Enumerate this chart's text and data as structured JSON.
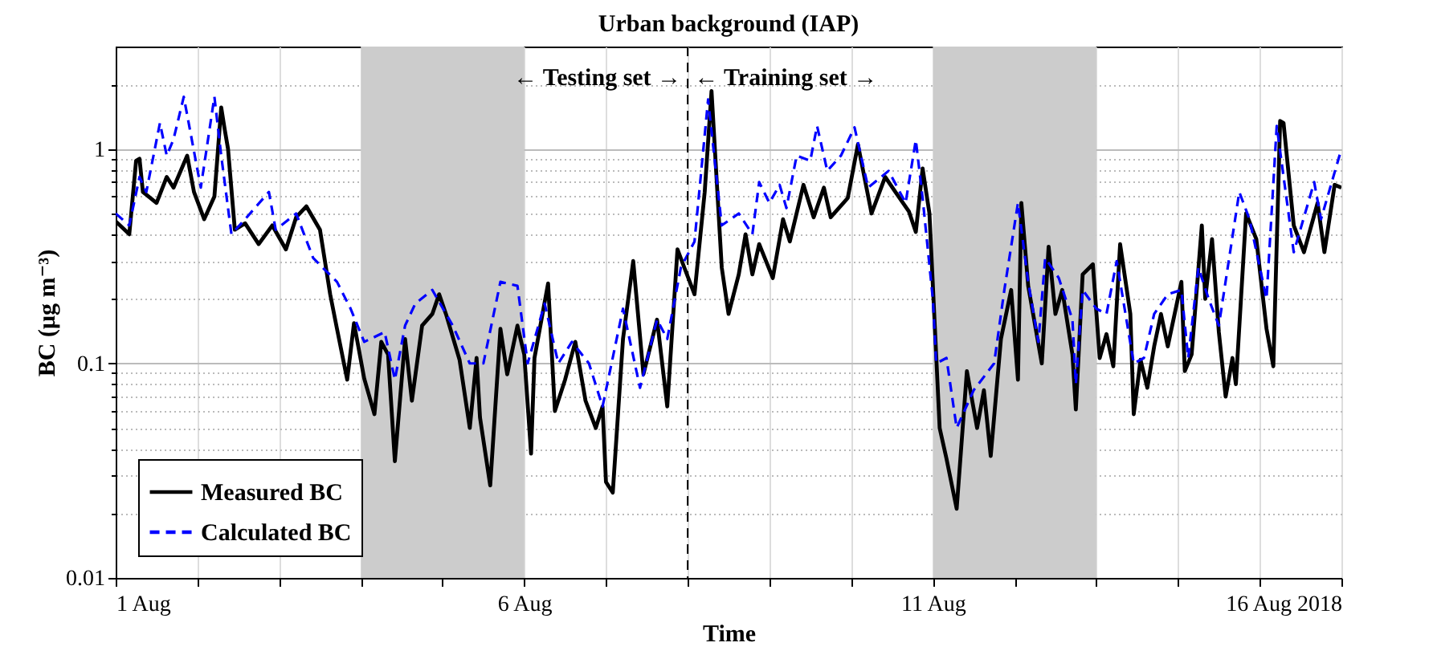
{
  "chart_data": {
    "type": "line",
    "title": "Urban background (IAP)",
    "xlabel": "Time",
    "ylabel": "BC (μg m⁻³)",
    "xlim": [
      "2018-08-01",
      "2018-08-16"
    ],
    "xticks": [
      {
        "value": "2018-08-01",
        "label": "1 Aug"
      },
      {
        "value": "2018-08-02",
        "label": null
      },
      {
        "value": "2018-08-03",
        "label": null
      },
      {
        "value": "2018-08-04",
        "label": null
      },
      {
        "value": "2018-08-05",
        "label": null
      },
      {
        "value": "2018-08-06",
        "label": "6 Aug"
      },
      {
        "value": "2018-08-07",
        "label": null
      },
      {
        "value": "2018-08-08",
        "label": null
      },
      {
        "value": "2018-08-09",
        "label": null
      },
      {
        "value": "2018-08-10",
        "label": null
      },
      {
        "value": "2018-08-11",
        "label": "11 Aug"
      },
      {
        "value": "2018-08-12",
        "label": null
      },
      {
        "value": "2018-08-13",
        "label": null
      },
      {
        "value": "2018-08-14",
        "label": null
      },
      {
        "value": "2018-08-15",
        "label": null
      },
      {
        "value": "2018-08-16",
        "label": "16 Aug 2018"
      }
    ],
    "ylim": [
      0.01,
      3
    ],
    "log": "y",
    "yticks": [
      0.01,
      {
        "value": 0.02,
        "label": null
      },
      {
        "value": 0.03,
        "label": null
      },
      {
        "value": 0.04,
        "label": null
      },
      {
        "value": 0.05,
        "label": null
      },
      {
        "value": 0.06,
        "label": null
      },
      {
        "value": 0.07,
        "label": null
      },
      {
        "value": 0.08,
        "label": null
      },
      {
        "value": 0.09,
        "label": null
      },
      0.1,
      {
        "value": 0.2,
        "label": null
      },
      {
        "value": 0.3,
        "label": null
      },
      {
        "value": 0.4,
        "label": null
      },
      {
        "value": 0.5,
        "label": null
      },
      {
        "value": 0.6,
        "label": null
      },
      {
        "value": 0.7,
        "label": null
      },
      {
        "value": 0.8,
        "label": null
      },
      {
        "value": 0.9,
        "label": null
      },
      1,
      {
        "value": 2,
        "label": null
      }
    ],
    "grid": true,
    "legend": "bottom left",
    "bands": [
      {
        "axis": "x",
        "from": "2018-08-04",
        "to": "2018-08-06",
        "color": "#cccccc"
      },
      {
        "axis": "x",
        "from": "2018-08-11",
        "to": "2018-08-13",
        "color": "#cccccc"
      }
    ],
    "ref_lines": [
      {
        "axis": "x",
        "value": "2018-08-08",
        "color": "#000000",
        "line_style": "dashed"
      }
    ],
    "annotations": [
      "← Testing set →",
      "← Training set →"
    ],
    "series": [
      {
        "name": "Measured BC",
        "color": "#000000",
        "line_style": "solid",
        "x": [
          "2018-08-01T00:00",
          "2018-08-01T04:00",
          "2018-08-01T06:00",
          "2018-08-01T07:00",
          "2018-08-01T08:00",
          "2018-08-01T12:00",
          "2018-08-01T15:00",
          "2018-08-01T17:00",
          "2018-08-01T21:00",
          "2018-08-01T23:00",
          "2018-08-02T02:00",
          "2018-08-02T05:00",
          "2018-08-02T07:00",
          "2018-08-02T08:00",
          "2018-08-02T09:00",
          "2018-08-02T11:00",
          "2018-08-02T14:00",
          "2018-08-02T18:00",
          "2018-08-02T22:00",
          "2018-08-03T02:00",
          "2018-08-03T05:00",
          "2018-08-03T08:00",
          "2018-08-03T12:00",
          "2018-08-03T15:00",
          "2018-08-03T17:00",
          "2018-08-03T20:00",
          "2018-08-03T22:00",
          "2018-08-04T01:00",
          "2018-08-04T04:00",
          "2018-08-04T06:00",
          "2018-08-04T08:00",
          "2018-08-04T10:00",
          "2018-08-04T13:00",
          "2018-08-04T15:00",
          "2018-08-04T18:00",
          "2018-08-04T21:00",
          "2018-08-04T23:00",
          "2018-08-05T01:00",
          "2018-08-05T05:00",
          "2018-08-05T08:00",
          "2018-08-05T10:00",
          "2018-08-05T11:00",
          "2018-08-05T14:00",
          "2018-08-05T17:00",
          "2018-08-05T19:00",
          "2018-08-05T22:00",
          "2018-08-06T00:00",
          "2018-08-06T02:00",
          "2018-08-06T03:00",
          "2018-08-06T07:00",
          "2018-08-06T09:00",
          "2018-08-06T12:00",
          "2018-08-06T15:00",
          "2018-08-06T18:00",
          "2018-08-06T21:00",
          "2018-08-06T23:00",
          "2018-08-07T00:00",
          "2018-08-07T02:00",
          "2018-08-07T05:00",
          "2018-08-07T08:00",
          "2018-08-07T11:00",
          "2018-08-07T15:00",
          "2018-08-07T18:00",
          "2018-08-07T21:00",
          "2018-08-07T23:00",
          "2018-08-08T02:00",
          "2018-08-08T05:00",
          "2018-08-08T07:00",
          "2018-08-08T10:00",
          "2018-08-08T12:00",
          "2018-08-08T15:00",
          "2018-08-08T17:00",
          "2018-08-08T19:00",
          "2018-08-08T21:00",
          "2018-08-09T01:00",
          "2018-08-09T04:00",
          "2018-08-09T06:00",
          "2018-08-09T10:00",
          "2018-08-09T13:00",
          "2018-08-09T16:00",
          "2018-08-09T18:00",
          "2018-08-09T23:00",
          "2018-08-10T02:00",
          "2018-08-10T06:00",
          "2018-08-10T10:00",
          "2018-08-10T13:00",
          "2018-08-10T17:00",
          "2018-08-10T19:00",
          "2018-08-10T21:00",
          "2018-08-10T23:00",
          "2018-08-11T02:00",
          "2018-08-11T04:00",
          "2018-08-11T07:00",
          "2018-08-11T10:00",
          "2018-08-11T13:00",
          "2018-08-11T15:00",
          "2018-08-11T17:00",
          "2018-08-11T20:00",
          "2018-08-11T23:00",
          "2018-08-12T01:00",
          "2018-08-12T02:00",
          "2018-08-12T04:00",
          "2018-08-12T08:00",
          "2018-08-12T10:00",
          "2018-08-12T12:00",
          "2018-08-12T14:00",
          "2018-08-12T17:00",
          "2018-08-12T18:00",
          "2018-08-12T20:00",
          "2018-08-12T23:00",
          "2018-08-13T01:00",
          "2018-08-13T03:00",
          "2018-08-13T05:00",
          "2018-08-13T07:00",
          "2018-08-13T10:00",
          "2018-08-13T11:00",
          "2018-08-13T13:00",
          "2018-08-13T15:00",
          "2018-08-13T17:00",
          "2018-08-13T19:00",
          "2018-08-13T21:00",
          "2018-08-14T01:00",
          "2018-08-14T02:00",
          "2018-08-14T04:00",
          "2018-08-14T07:00",
          "2018-08-14T08:00",
          "2018-08-14T10:00",
          "2018-08-14T12:00",
          "2018-08-14T14:00",
          "2018-08-14T16:00",
          "2018-08-14T17:00",
          "2018-08-14T20:00",
          "2018-08-14T23:00",
          "2018-08-15T02:00",
          "2018-08-15T04:00",
          "2018-08-15T06:00",
          "2018-08-15T07:00",
          "2018-08-15T10:00",
          "2018-08-15T13:00",
          "2018-08-15T17:00",
          "2018-08-15T19:00",
          "2018-08-15T22:00",
          "2018-08-16T00:00"
        ],
        "values": [
          0.46,
          0.4,
          0.88,
          0.9,
          0.63,
          0.56,
          0.74,
          0.66,
          0.93,
          0.63,
          0.47,
          0.6,
          1.56,
          1.24,
          1.0,
          0.42,
          0.45,
          0.36,
          0.44,
          0.34,
          0.48,
          0.54,
          0.42,
          0.21,
          0.145,
          0.084,
          0.154,
          0.085,
          0.058,
          0.126,
          0.11,
          0.035,
          0.13,
          0.067,
          0.15,
          0.17,
          0.21,
          0.17,
          0.104,
          0.05,
          0.106,
          0.056,
          0.027,
          0.145,
          0.089,
          0.15,
          0.11,
          0.038,
          0.106,
          0.236,
          0.06,
          0.084,
          0.126,
          0.067,
          0.05,
          0.063,
          0.028,
          0.025,
          0.13,
          0.3,
          0.089,
          0.16,
          0.063,
          0.34,
          0.28,
          0.21,
          0.63,
          1.86,
          0.28,
          0.17,
          0.26,
          0.4,
          0.26,
          0.36,
          0.25,
          0.47,
          0.37,
          0.68,
          0.48,
          0.66,
          0.48,
          0.59,
          1.05,
          0.5,
          0.74,
          0.63,
          0.51,
          0.41,
          0.81,
          0.5,
          0.05,
          0.036,
          0.021,
          0.092,
          0.05,
          0.075,
          0.037,
          0.13,
          0.22,
          0.084,
          0.56,
          0.23,
          0.1,
          0.35,
          0.17,
          0.22,
          0.11,
          0.061,
          0.26,
          0.29,
          0.106,
          0.137,
          0.097,
          0.36,
          0.17,
          0.058,
          0.104,
          0.077,
          0.12,
          0.17,
          0.12,
          0.24,
          0.092,
          0.11,
          0.44,
          0.2,
          0.38,
          0.14,
          0.07,
          0.106,
          0.08,
          0.5,
          0.38,
          0.145,
          0.097,
          1.35,
          1.32,
          0.44,
          0.33,
          0.56,
          0.33,
          0.68,
          0.66
        ]
      },
      {
        "name": "Calculated BC",
        "color": "#0000ff",
        "line_style": "dashed",
        "x": [
          "2018-08-01T00:00",
          "2018-08-01T04:00",
          "2018-08-01T07:00",
          "2018-08-01T09:00",
          "2018-08-01T13:00",
          "2018-08-01T15:00",
          "2018-08-01T17:00",
          "2018-08-01T20:00",
          "2018-08-02T01:00",
          "2018-08-02T05:00",
          "2018-08-02T07:00",
          "2018-08-02T10:00",
          "2018-08-02T14:00",
          "2018-08-02T21:00",
          "2018-08-02T23:00",
          "2018-08-03T05:00",
          "2018-08-03T10:00",
          "2018-08-03T17:00",
          "2018-08-03T21:00",
          "2018-08-04T01:00",
          "2018-08-04T07:00",
          "2018-08-04T10:00",
          "2018-08-04T13:00",
          "2018-08-04T16:00",
          "2018-08-04T21:00",
          "2018-08-05T03:00",
          "2018-08-05T08:00",
          "2018-08-05T12:00",
          "2018-08-05T17:00",
          "2018-08-05T22:00",
          "2018-08-06T01:00",
          "2018-08-06T06:00",
          "2018-08-06T10:00",
          "2018-08-06T14:00",
          "2018-08-06T19:00",
          "2018-08-06T23:00",
          "2018-08-07T05:00",
          "2018-08-07T10:00",
          "2018-08-07T15:00",
          "2018-08-07T18:00",
          "2018-08-07T22:00",
          "2018-08-08T02:00",
          "2018-08-08T06:00",
          "2018-08-08T10:00",
          "2018-08-08T15:00",
          "2018-08-08T19:00",
          "2018-08-08T21:00",
          "2018-08-09T00:00",
          "2018-08-09T03:00",
          "2018-08-09T05:00",
          "2018-08-09T08:00",
          "2018-08-09T12:00",
          "2018-08-09T14:00",
          "2018-08-09T17:00",
          "2018-08-09T21:00",
          "2018-08-10T01:00",
          "2018-08-10T05:00",
          "2018-08-10T11:00",
          "2018-08-10T16:00",
          "2018-08-10T19:00",
          "2018-08-10T21:00",
          "2018-08-11T00:00",
          "2018-08-11T01:00",
          "2018-08-11T04:00",
          "2018-08-11T07:00",
          "2018-08-11T12:00",
          "2018-08-11T18:00",
          "2018-08-11T21:00",
          "2018-08-12T01:00",
          "2018-08-12T04:00",
          "2018-08-12T07:00",
          "2018-08-12T09:00",
          "2018-08-12T13:00",
          "2018-08-12T17:00",
          "2018-08-12T18:00",
          "2018-08-12T20:00",
          "2018-08-13T00:00",
          "2018-08-13T03:00",
          "2018-08-13T06:00",
          "2018-08-13T11:00",
          "2018-08-13T14:00",
          "2018-08-13T17:00",
          "2018-08-13T21:00",
          "2018-08-14T01:00",
          "2018-08-14T03:00",
          "2018-08-14T06:00",
          "2018-08-14T09:00",
          "2018-08-14T12:00",
          "2018-08-14T18:00",
          "2018-08-14T21:00",
          "2018-08-15T02:00",
          "2018-08-15T05:00",
          "2018-08-15T10:00",
          "2018-08-15T16:00",
          "2018-08-15T18:00",
          "2018-08-16T00:00"
        ],
        "values": [
          0.5,
          0.44,
          0.74,
          0.63,
          1.32,
          0.93,
          1.11,
          1.75,
          0.66,
          1.75,
          0.93,
          0.4,
          0.47,
          0.63,
          0.42,
          0.5,
          0.31,
          0.24,
          0.18,
          0.126,
          0.14,
          0.084,
          0.15,
          0.19,
          0.22,
          0.15,
          0.1,
          0.1,
          0.24,
          0.23,
          0.1,
          0.19,
          0.1,
          0.126,
          0.1,
          0.063,
          0.18,
          0.077,
          0.16,
          0.13,
          0.28,
          0.37,
          1.7,
          0.44,
          0.5,
          0.4,
          0.7,
          0.56,
          0.68,
          0.53,
          0.93,
          0.88,
          1.28,
          0.79,
          0.93,
          1.26,
          0.66,
          0.79,
          0.56,
          1.1,
          0.59,
          0.2,
          0.1,
          0.106,
          0.05,
          0.075,
          0.1,
          0.22,
          0.56,
          0.24,
          0.126,
          0.31,
          0.25,
          0.16,
          0.08,
          0.22,
          0.18,
          0.17,
          0.3,
          0.1,
          0.106,
          0.17,
          0.21,
          0.22,
          0.106,
          0.28,
          0.2,
          0.15,
          0.63,
          0.47,
          0.2,
          1.28,
          0.33,
          0.7,
          0.47,
          1.0
        ]
      }
    ]
  }
}
